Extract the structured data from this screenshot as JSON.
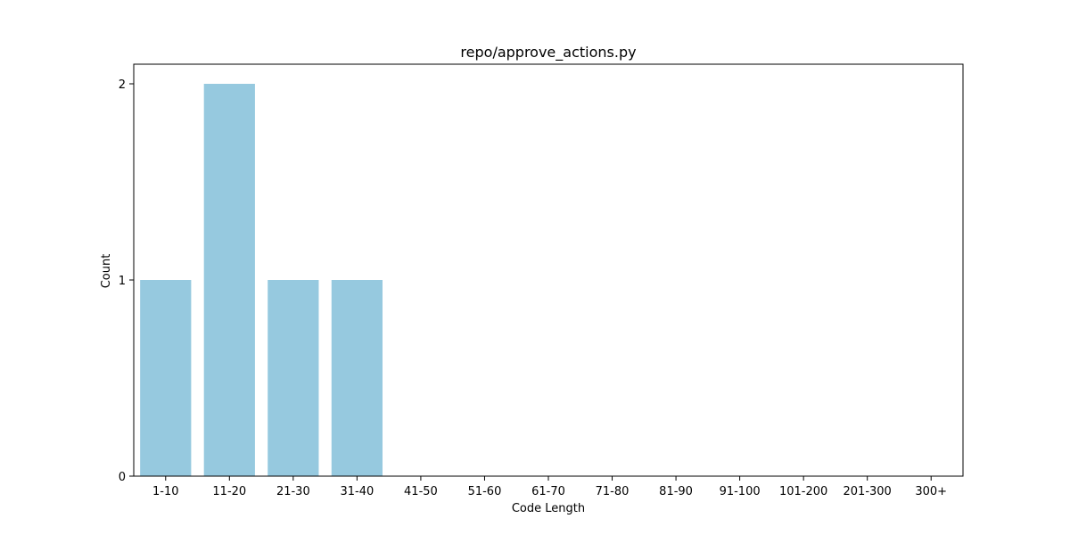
{
  "chart_data": {
    "type": "bar",
    "title": "repo/approve_actions.py",
    "xlabel": "Code Length",
    "ylabel": "Count",
    "categories": [
      "1-10",
      "11-20",
      "21-30",
      "31-40",
      "41-50",
      "51-60",
      "61-70",
      "71-80",
      "81-90",
      "91-100",
      "101-200",
      "201-300",
      "300+"
    ],
    "values": [
      1,
      2,
      1,
      1,
      0,
      0,
      0,
      0,
      0,
      0,
      0,
      0,
      0
    ],
    "ylim": [
      0,
      2.1
    ],
    "yticks": [
      0,
      1,
      2
    ],
    "grid": false,
    "bar_color": "#96c9df"
  }
}
